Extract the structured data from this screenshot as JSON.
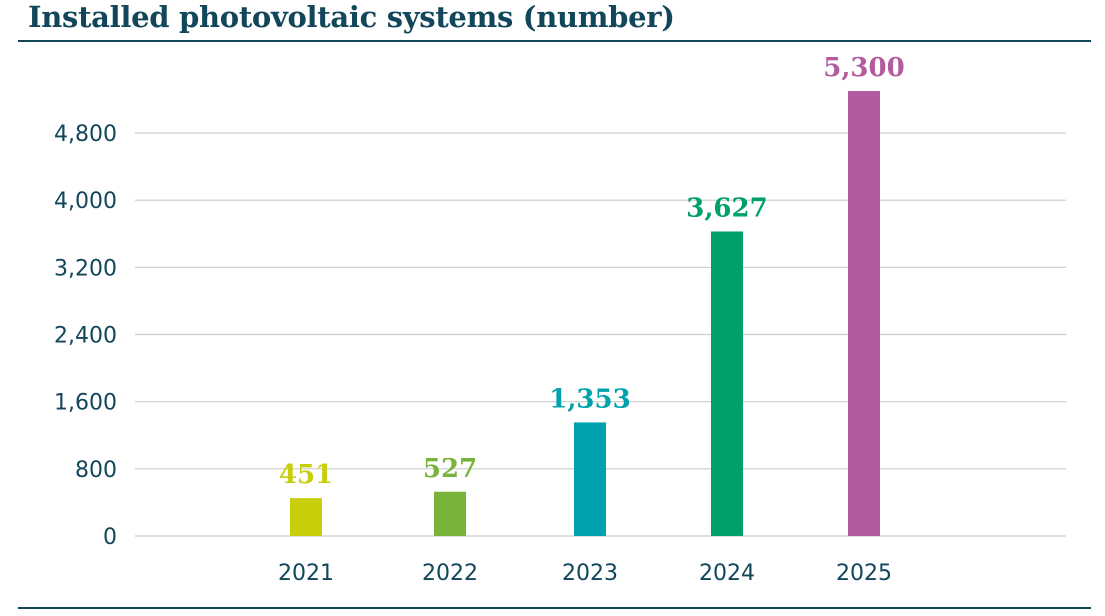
{
  "chart_data": {
    "type": "bar",
    "title": "Installed photovoltaic systems (number)",
    "xlabel": "",
    "ylabel": "",
    "categories": [
      "2021",
      "2022",
      "2023",
      "2024",
      "2025"
    ],
    "values": [
      451,
      527,
      1353,
      3627,
      5300
    ],
    "value_labels": [
      "451",
      "527",
      "1,353",
      "3,627",
      "5,300"
    ],
    "bar_colors": [
      "#c8cf0a",
      "#78b43c",
      "#00a2ad",
      "#00a06a",
      "#b45a9f"
    ],
    "yticks": [
      0,
      800,
      1600,
      2400,
      3200,
      4000,
      4800
    ],
    "ytick_labels": [
      "0",
      "800",
      "1,600",
      "2,400",
      "3,200",
      "4,000",
      "4,800"
    ],
    "ylim": [
      0,
      5300
    ],
    "grid": true,
    "legend": "none"
  },
  "colors": {
    "title": "#12465a",
    "axis_text": "#12465a",
    "grid": "#cccccc"
  }
}
